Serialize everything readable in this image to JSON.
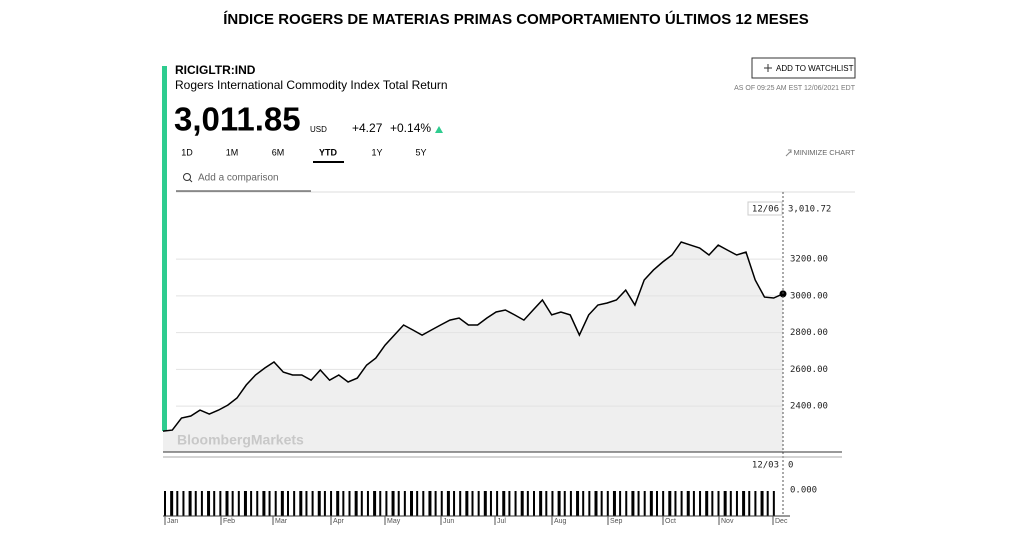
{
  "page_title": "ÍNDICE ROGERS DE MATERIAS PRIMAS COMPORTAMIENTO ÚLTIMOS 12 MESES",
  "ticker": "RICIGLTR:IND",
  "name": "Rogers International Commodity Index Total Return",
  "price": "3,011.85",
  "currency": "USD",
  "change": "+4.27",
  "change_pct": "+0.14%",
  "watchlist_button": "ADD TO WATCHLIST",
  "timestamp": "AS OF 09:25 AM EST 12/06/2021 EDT",
  "ranges": [
    "1D",
    "1M",
    "6M",
    "YTD",
    "1Y",
    "5Y"
  ],
  "minimize": "MINIMIZE CHART",
  "comparison_placeholder": "Add a comparison",
  "watermark": "BloombergMarkets",
  "chart_data": {
    "type": "line",
    "color": "#000000",
    "x_labels": [
      "Jan",
      "Feb",
      "Mar",
      "Apr",
      "May",
      "Jun",
      "Jul",
      "Aug",
      "Sep",
      "Oct",
      "Nov",
      "Dec"
    ],
    "values": [
      2264,
      2269,
      2335,
      2346,
      2378,
      2356,
      2378,
      2405,
      2444,
      2515,
      2569,
      2607,
      2640,
      2585,
      2569,
      2569,
      2541,
      2596,
      2541,
      2569,
      2531,
      2552,
      2623,
      2661,
      2732,
      2786,
      2841,
      2814,
      2786,
      2814,
      2841,
      2868,
      2879,
      2841,
      2841,
      2879,
      2912,
      2923,
      2896,
      2868,
      2923,
      2977,
      2896,
      2912,
      2896,
      2786,
      2896,
      2950,
      2961,
      2977,
      3031,
      2950,
      3086,
      3140,
      3184,
      3222,
      3293,
      3276,
      3260,
      3222,
      3276,
      3249,
      3222,
      3238,
      3086,
      2993,
      2988,
      3010.72
    ],
    "ylim": [
      2150,
      3565
    ],
    "yticks": [
      {
        "value": 2400,
        "label": "2400.00"
      },
      {
        "value": 2600,
        "label": "2600.00"
      },
      {
        "value": 2800,
        "label": "2800.00"
      },
      {
        "value": 3000,
        "label": "3000.00"
      },
      {
        "value": 3200,
        "label": "3200.00"
      }
    ],
    "last_date": "12/06",
    "last_value_label": "3,010.72",
    "grid": true,
    "volume": {
      "last_date": "12/03",
      "last_value": 0,
      "ytick": {
        "value": 0,
        "label": "0.000"
      }
    }
  }
}
